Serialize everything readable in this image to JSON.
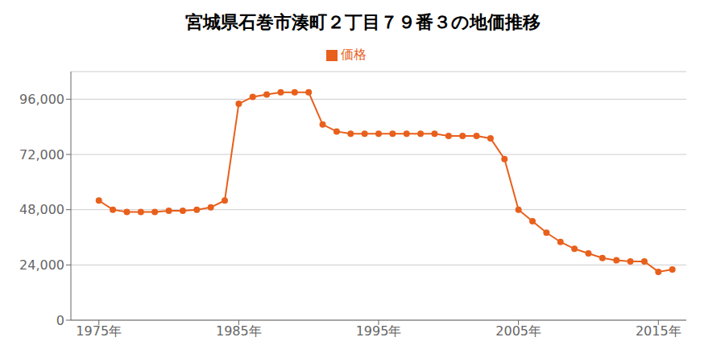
{
  "chart_data": {
    "type": "line",
    "title": "宮城県石巻市湊町２丁目７９番３の地価推移",
    "x": [
      1975,
      1976,
      1977,
      1978,
      1979,
      1980,
      1981,
      1982,
      1983,
      1984,
      1985,
      1986,
      1987,
      1988,
      1989,
      1990,
      1991,
      1992,
      1993,
      1994,
      1995,
      1996,
      1997,
      1998,
      1999,
      2000,
      2001,
      2002,
      2003,
      2004,
      2005,
      2006,
      2007,
      2008,
      2009,
      2010,
      2011,
      2012,
      2013,
      2014,
      2015,
      2016
    ],
    "series": [
      {
        "name": "価格",
        "color": "#E8601C",
        "marker": "circle",
        "values": [
          52000,
          48000,
          47000,
          47000,
          47000,
          47500,
          47500,
          48000,
          49000,
          52000,
          94000,
          97000,
          98000,
          99000,
          99000,
          99000,
          85000,
          82000,
          81000,
          81000,
          81000,
          81000,
          81000,
          81000,
          81000,
          80000,
          80000,
          80000,
          79000,
          70000,
          48000,
          43000,
          38000,
          34000,
          31000,
          29000,
          27000,
          26000,
          25500,
          25500,
          21000,
          22000
        ]
      }
    ],
    "xlim": [
      1973,
      2017
    ],
    "xticks": [
      {
        "value": 1975,
        "label": "1975年"
      },
      {
        "value": 1985,
        "label": "1985年"
      },
      {
        "value": 1995,
        "label": "1995年"
      },
      {
        "value": 2005,
        "label": "2005年"
      },
      {
        "value": 2015,
        "label": "2015年"
      }
    ],
    "ylim": [
      0,
      108000
    ],
    "yticks": [
      0,
      {
        "value": 24000,
        "label": "24,000"
      },
      {
        "value": 48000,
        "label": "48,000"
      },
      {
        "value": 72000,
        "label": "72,000"
      },
      {
        "value": 96000,
        "label": "96,000"
      }
    ],
    "grid": "y",
    "legend": "top"
  }
}
